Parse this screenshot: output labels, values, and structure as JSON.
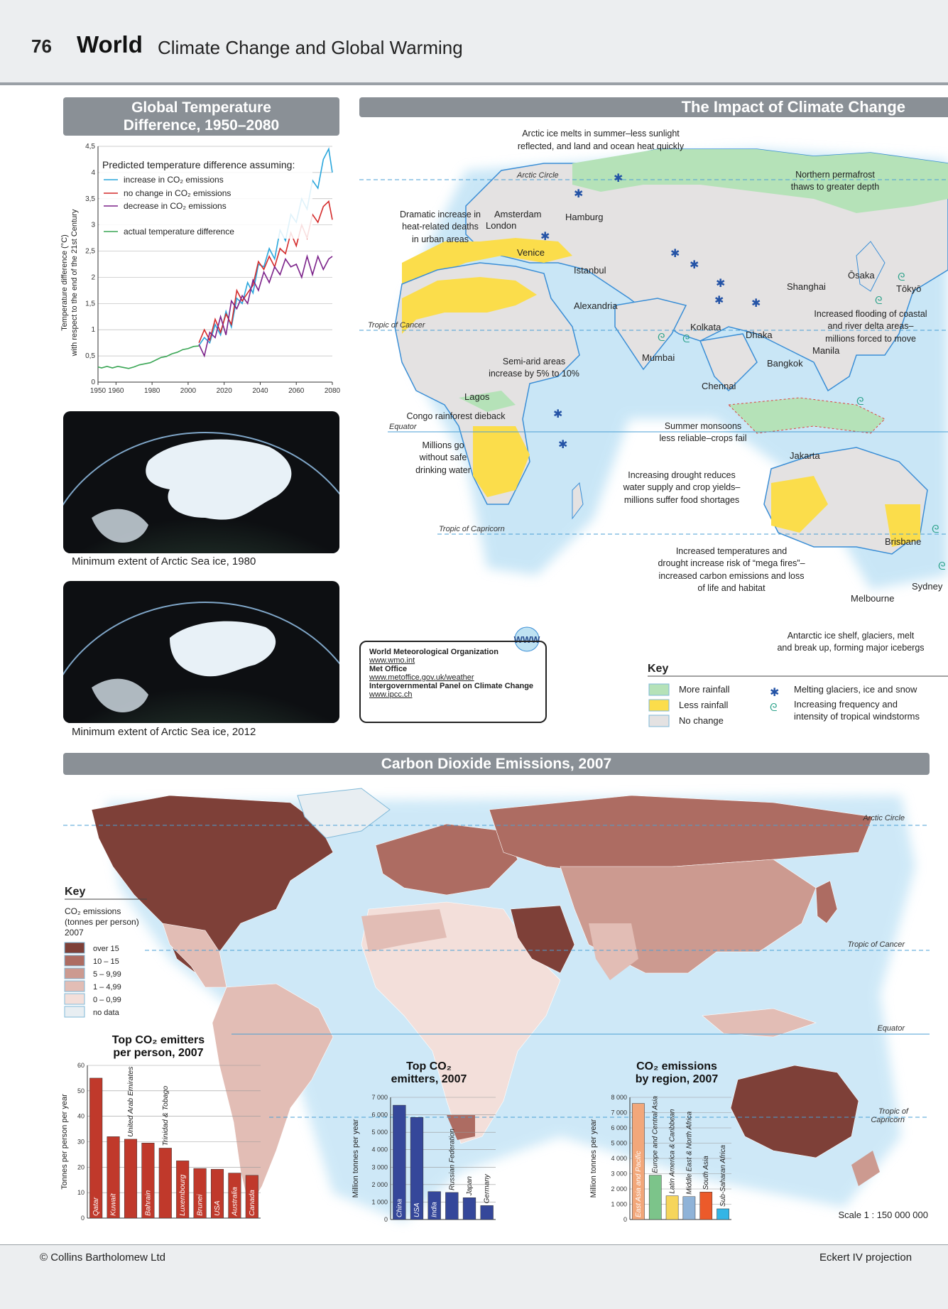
{
  "header": {
    "page_number": "76",
    "section": "World",
    "title": "Climate Change and Global Warming"
  },
  "temp_panel": {
    "title_line1": "Global Temperature",
    "title_line2": "Difference, 1950–2080",
    "legend_heading": "Predicted temperature difference assuming:",
    "legend": [
      {
        "label": "increase in CO₂ emissions",
        "color": "#29a6dc"
      },
      {
        "label": "no change in CO₂ emissions",
        "color": "#d42a2a"
      },
      {
        "label": "decrease in CO₂ emissions",
        "color": "#7b2189"
      },
      {
        "label": "actual temperature difference",
        "color": "#3aa655"
      }
    ],
    "ylabel_line1": "Temperature difference (°C)",
    "ylabel_line2": "with respect to the end of the 21st Century"
  },
  "sea_ice": {
    "caption_1980": "Minimum extent of Arctic Sea ice, 1980",
    "caption_2012": "Minimum extent of Arctic Sea ice, 2012"
  },
  "impact_map": {
    "title": "The Impact of Climate Change",
    "lines": {
      "arctic_circle": "Arctic Circle",
      "tropic_cancer": "Tropic of Cancer",
      "equator": "Equator",
      "tropic_capricorn": "Tropic of Capricorn"
    },
    "cities": [
      "Amsterdam",
      "London",
      "Hamburg",
      "Venice",
      "Istanbul",
      "Alexandria",
      "Lagos",
      "Kolkata",
      "Dhaka",
      "Mumbai",
      "Chennai",
      "Bangkok",
      "Manila",
      "Shanghai",
      "Ōsaka",
      "Tōkyō",
      "Jakarta",
      "Brisbane",
      "Sydney",
      "Melbourne"
    ],
    "annotations": {
      "arctic_ice": [
        "Arctic ice melts in summer–less sunlight",
        "reflected, and land and ocean heat quickly"
      ],
      "permafrost": [
        "Northern permafrost",
        "thaws to greater depth"
      ],
      "heat_deaths": [
        "Dramatic increase in",
        "heat-related deaths",
        "in urban areas"
      ],
      "flooding": [
        "Increased flooding of coastal",
        "and river delta areas–",
        "millions forced to move"
      ],
      "semi_arid": [
        "Semi-arid areas",
        "increase by 5% to 10%"
      ],
      "congo": "Congo rainforest dieback",
      "water": [
        "Millions go",
        "without safe",
        "drinking water"
      ],
      "monsoons": [
        "Summer monsoons",
        "less reliable–crops fail"
      ],
      "drought": [
        "Increasing drought reduces",
        "water supply and crop yields–",
        "millions suffer food shortages"
      ],
      "fires": [
        "Increased temperatures and",
        "drought increase risk of “mega fires”–",
        "increased carbon emissions and loss",
        "of life and habitat"
      ],
      "antarctic": [
        "Antarctic ice shelf, glaciers, melt",
        "and break up, forming major icebergs"
      ]
    },
    "key": {
      "title": "Key",
      "items": [
        {
          "label": "More rainfall",
          "color": "#b5e2b8"
        },
        {
          "label": "Less rainfall",
          "color": "#fbdd4b"
        },
        {
          "label": "No change",
          "color": "#e4e2e2"
        },
        {
          "label": "Melting glaciers, ice and snow",
          "icon": "snowflake-icon"
        },
        {
          "label": "Increasing frequency and",
          "label2": "intensity of tropical windstorms",
          "icon": "cyclone-icon"
        }
      ]
    },
    "www_badge": "WWW"
  },
  "links": [
    {
      "org": "World Meteorological Organization",
      "url": "www.wmo.int"
    },
    {
      "org": "Met Office",
      "url": "www.metoffice.gov.uk/weather"
    },
    {
      "org": "Intergovernmental Panel on Climate Change",
      "url": "www.ipcc.ch"
    }
  ],
  "co2_map": {
    "title": "Carbon Dioxide Emissions, 2007",
    "lines": {
      "arctic_circle": "Arctic Circle",
      "tropic_cancer": "Tropic of Cancer",
      "equator": "Equator",
      "tropic_capricorn_1": "Tropic of",
      "tropic_capricorn_2": "Capricorn"
    },
    "key": {
      "title": "Key",
      "subtitle": [
        "CO₂ emissions",
        "(tonnes per person)",
        "2007"
      ],
      "items": [
        {
          "label": "over 15",
          "color": "#7e4038"
        },
        {
          "label": "10 – 15",
          "color": "#ad6c62"
        },
        {
          "label": "5 – 9,99",
          "color": "#cc9a90"
        },
        {
          "label": "1 – 4,99",
          "color": "#e2bdb5"
        },
        {
          "label": "0 – 0,99",
          "color": "#f3dfda"
        },
        {
          "label": "no data",
          "color": "#e8eef2"
        }
      ]
    },
    "scale": "Scale 1 : 150 000 000"
  },
  "footer": {
    "copyright": "© Collins Bartholomew Ltd",
    "projection": "Eckert IV projection"
  },
  "chart_data": [
    {
      "type": "line",
      "title": "Global Temperature Difference, 1950–2080",
      "xlabel": "",
      "ylabel": "Temperature difference (°C) with respect to the end of the 21st Century",
      "xlim": [
        1950,
        2080
      ],
      "ylim": [
        0,
        4.5
      ],
      "x_ticks": [
        "1950",
        "1960",
        "1980",
        "2000",
        "2020",
        "2040",
        "2060",
        "2080"
      ],
      "y_ticks": [
        "0",
        "0,5",
        "1",
        "1,5",
        "2",
        "2,5",
        "3",
        "3,5",
        "4",
        "4,5"
      ],
      "series": [
        {
          "name": "actual temperature difference",
          "color": "#3aa655",
          "x": [
            1950,
            1952,
            1955,
            1958,
            1961,
            1964,
            1967,
            1970,
            1973,
            1976,
            1979,
            1982,
            1985,
            1988,
            1991,
            1994,
            1997,
            2000,
            2003,
            2006
          ],
          "y": [
            0.29,
            0.27,
            0.3,
            0.27,
            0.3,
            0.28,
            0.26,
            0.29,
            0.33,
            0.35,
            0.37,
            0.42,
            0.47,
            0.49,
            0.54,
            0.57,
            0.62,
            0.64,
            0.68,
            0.69
          ]
        },
        {
          "name": "increase in CO₂ emissions",
          "color": "#29a6dc",
          "x": [
            2006,
            2009,
            2012,
            2015,
            2018,
            2021,
            2024,
            2027,
            2030,
            2033,
            2036,
            2039,
            2042,
            2045,
            2048,
            2051,
            2054,
            2057,
            2060,
            2063,
            2066,
            2069,
            2072,
            2075,
            2078,
            2080
          ],
          "y": [
            0.7,
            0.85,
            0.75,
            1.1,
            0.9,
            1.35,
            1.05,
            1.6,
            1.5,
            1.9,
            1.7,
            2.25,
            2.2,
            2.55,
            2.35,
            2.9,
            2.7,
            3.2,
            3.05,
            3.5,
            3.3,
            3.85,
            3.7,
            4.25,
            4.45,
            4.0
          ]
        },
        {
          "name": "no change in CO₂ emissions",
          "color": "#d42a2a",
          "x": [
            2006,
            2009,
            2012,
            2015,
            2018,
            2021,
            2024,
            2027,
            2030,
            2033,
            2036,
            2039,
            2042,
            2045,
            2048,
            2051,
            2054,
            2057,
            2060,
            2063,
            2066,
            2069,
            2072,
            2075,
            2078,
            2080
          ],
          "y": [
            0.75,
            1.0,
            0.8,
            1.2,
            0.95,
            1.3,
            1.1,
            1.75,
            1.55,
            1.7,
            1.85,
            2.3,
            2.15,
            2.4,
            2.2,
            2.55,
            2.45,
            2.85,
            2.6,
            3.0,
            2.75,
            3.2,
            3.05,
            3.35,
            3.45,
            3.1
          ]
        },
        {
          "name": "decrease in CO₂ emissions",
          "color": "#7b2189",
          "x": [
            2006,
            2009,
            2012,
            2015,
            2018,
            2021,
            2024,
            2027,
            2030,
            2033,
            2036,
            2039,
            2042,
            2045,
            2048,
            2051,
            2054,
            2057,
            2060,
            2063,
            2066,
            2069,
            2072,
            2075,
            2078,
            2080
          ],
          "y": [
            0.72,
            0.5,
            0.95,
            0.85,
            1.25,
            0.9,
            1.55,
            1.4,
            1.65,
            1.5,
            1.95,
            1.75,
            2.1,
            1.9,
            2.2,
            2.05,
            2.35,
            2.2,
            2.25,
            2.0,
            2.4,
            2.05,
            2.4,
            2.15,
            2.35,
            2.4
          ]
        }
      ]
    },
    {
      "type": "bar",
      "title": "Top CO₂ emitters per person, 2007",
      "ylabel": "Tonnes per person per year",
      "ylim": [
        0,
        60
      ],
      "y_ticks": [
        "0",
        "10",
        "20",
        "30",
        "40",
        "50",
        "60"
      ],
      "color": "#c0392b",
      "categories": [
        "Qatar",
        "Kuwait",
        "United Arab Emirates",
        "Bahrain",
        "Trinidad & Tobago",
        "Luxembourg",
        "Brunei",
        "USA",
        "Australia",
        "Canada"
      ],
      "values": [
        55,
        32,
        31,
        29.5,
        27.5,
        22.5,
        19.5,
        19.2,
        17.7,
        16.8
      ]
    },
    {
      "type": "bar",
      "title": "Top CO₂ emitters, 2007",
      "ylabel": "Million tonnes per year",
      "ylim": [
        0,
        7000
      ],
      "y_ticks": [
        "0",
        "1 000",
        "2 000",
        "3 000",
        "4 000",
        "5 000",
        "6 000",
        "7 000"
      ],
      "color": "#35479a",
      "categories": [
        "China",
        "USA",
        "India",
        "Russian Federation",
        "Japan",
        "Germany"
      ],
      "values": [
        6550,
        5850,
        1600,
        1550,
        1250,
        800
      ]
    },
    {
      "type": "bar",
      "title": "CO₂ emissions by region, 2007",
      "ylabel": "Million tonnes per year",
      "ylim": [
        0,
        8000
      ],
      "y_ticks": [
        "0",
        "1 000",
        "2 000",
        "3 000",
        "4 000",
        "5 000",
        "6 000",
        "7 000",
        "8 000"
      ],
      "categories": [
        "East Asia and Pacific",
        "Europe and Central Asia",
        "Latin America & Caribbean",
        "Middle East & North Africa",
        "South Asia",
        "Sub-Saharan Africa"
      ],
      "values": [
        7600,
        2900,
        1550,
        1500,
        1800,
        700
      ],
      "colors": [
        "#f2a77a",
        "#7cc48a",
        "#f6d55b",
        "#8fb3d8",
        "#ec5a2a",
        "#33b5e5"
      ]
    }
  ]
}
